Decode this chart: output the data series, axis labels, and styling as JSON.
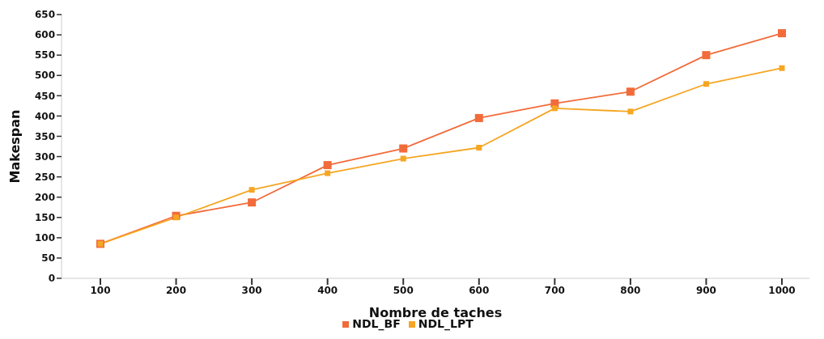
{
  "chart_data": {
    "type": "line",
    "xlabel": "Nombre de taches",
    "ylabel": "Makespan",
    "categories": [
      "100",
      "200",
      "300",
      "400",
      "500",
      "600",
      "700",
      "800",
      "900",
      "1000"
    ],
    "series": [
      {
        "name": "NDL_BF",
        "color": "#f26b3a",
        "values": [
          85,
          154,
          187,
          279,
          320,
          395,
          431,
          460,
          550,
          604
        ]
      },
      {
        "name": "NDL_LPT",
        "color": "#f5a623",
        "values": [
          85,
          150,
          218,
          259,
          295,
          322,
          419,
          411,
          479,
          518
        ]
      }
    ],
    "ylim": [
      0,
      650
    ],
    "yticks": [
      0,
      50,
      100,
      150,
      200,
      250,
      300,
      350,
      400,
      450,
      500,
      550,
      600,
      650
    ],
    "grid": false,
    "legend": "bottom",
    "marker": "square",
    "line_style": "solid"
  }
}
